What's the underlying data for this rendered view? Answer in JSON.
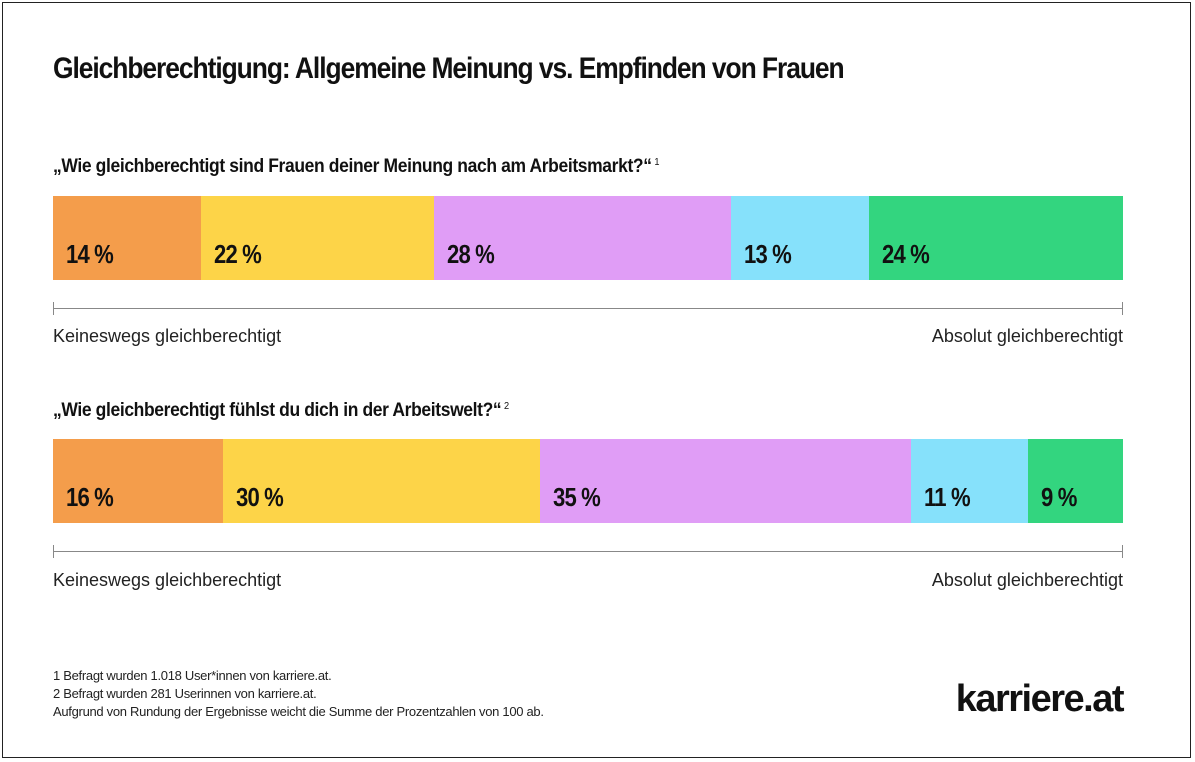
{
  "title": "Gleichberechtigung: Allgemeine Meinung vs. Empfinden von Frauen",
  "colors": [
    "#F49D4B",
    "#FDD448",
    "#E09DF6",
    "#86E1FB",
    "#33D57F"
  ],
  "chart_data": [
    {
      "type": "bar",
      "stacked": true,
      "orientation": "horizontal",
      "title": "„Wie gleichberechtigt sind Frauen deiner Meinung nach am Arbeitsmarkt?“",
      "footnote_ref": "1",
      "values": [
        14,
        22,
        28,
        13,
        24
      ],
      "labels": [
        "14 %",
        "22 %",
        "28 %",
        "13 %",
        "24 %"
      ],
      "scale_left": "Keineswegs gleichberechtigt",
      "scale_right": "Absolut gleichberechtigt"
    },
    {
      "type": "bar",
      "stacked": true,
      "orientation": "horizontal",
      "title": "„Wie gleichberechtigt fühlst du dich in der Arbeitswelt?“",
      "footnote_ref": "2",
      "values": [
        16,
        30,
        35,
        11,
        9
      ],
      "labels": [
        "16 %",
        "30 %",
        "35 %",
        "11 %",
        "9 %"
      ],
      "scale_left": "Keineswegs gleichberechtigt",
      "scale_right": "Absolut gleichberechtigt"
    }
  ],
  "footnotes": [
    "1  Befragt wurden 1.018 User*innen von karriere.at.",
    "2  Befragt wurden 281 Userinnen von karriere.at.",
    "Aufgrund von Rundung der Ergebnisse weicht die Summe der Prozentzahlen von 100 ab."
  ],
  "logo": "karriere.at"
}
